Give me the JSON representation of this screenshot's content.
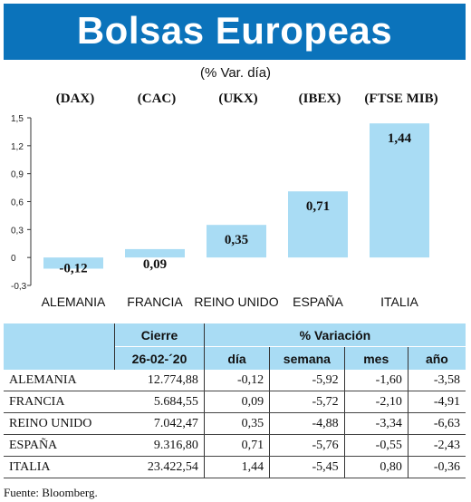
{
  "header": {
    "title": "Bolsas Europeas",
    "subtitle": "(% Var. día)"
  },
  "indices": [
    "(DAX)",
    "(CAC)",
    "(UKX)",
    "(IBEX)",
    "(FTSE MIB)"
  ],
  "chart_data": {
    "type": "bar",
    "categories": [
      "ALEMANIA",
      "FRANCIA",
      "REINO UNIDO",
      "ESPAÑA",
      "ITALIA"
    ],
    "values": [
      -0.12,
      0.09,
      0.35,
      0.71,
      1.44
    ],
    "value_labels": [
      "-0,12",
      "0,09",
      "0,35",
      "0,71",
      "1,44"
    ],
    "ylim": [
      -0.3,
      1.5
    ],
    "yticks": [
      -0.3,
      0,
      0.3,
      0.6,
      0.9,
      1.2,
      1.5
    ],
    "ytick_labels": [
      "-0,3",
      "0",
      "0,3",
      "0,6",
      "0,9",
      "1,2",
      "1,5"
    ],
    "bar_color": "#a9dcf4",
    "grid": false
  },
  "table": {
    "col_headers": {
      "cierre": "Cierre",
      "variacion": "% Variación",
      "date": "26-02-´20",
      "dia": "día",
      "semana": "semana",
      "mes": "mes",
      "anio": "año"
    },
    "rows": [
      {
        "name": "ALEMANIA",
        "cierre": "12.774,88",
        "dia": "-0,12",
        "semana": "-5,92",
        "mes": "-1,60",
        "anio": "-3,58"
      },
      {
        "name": "FRANCIA",
        "cierre": "5.684,55",
        "dia": "0,09",
        "semana": "-5,72",
        "mes": "-2,10",
        "anio": "-4,91"
      },
      {
        "name": "REINO UNIDO",
        "cierre": "7.042,47",
        "dia": "0,35",
        "semana": "-4,88",
        "mes": "-3,34",
        "anio": "-6,63"
      },
      {
        "name": "ESPAÑA",
        "cierre": "9.316,80",
        "dia": "0,71",
        "semana": "-5,76",
        "mes": "-0,55",
        "anio": "-2,43"
      },
      {
        "name": "ITALIA",
        "cierre": "23.422,54",
        "dia": "1,44",
        "semana": "-5,45",
        "mes": "0,80",
        "anio": "-0,36"
      }
    ]
  },
  "source": "Fuente: Bloomberg.",
  "colors": {
    "banner": "#0b73bb",
    "header_fill": "#a9dcf4"
  }
}
